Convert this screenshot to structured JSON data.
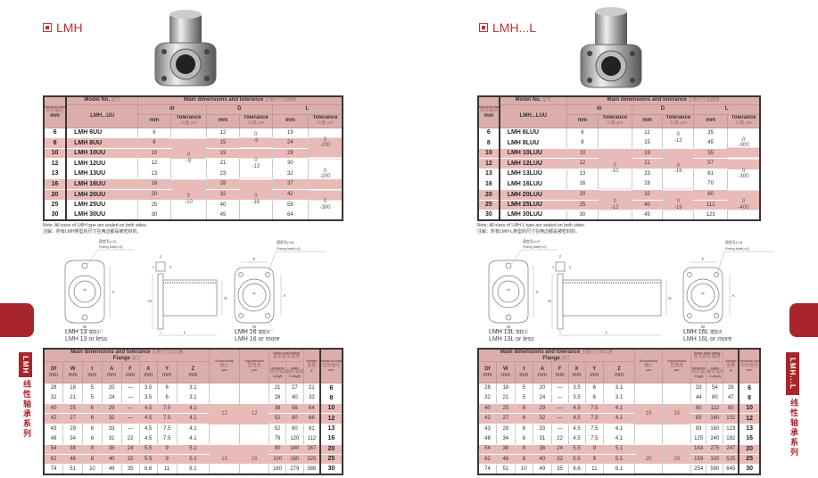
{
  "headers": {
    "nominal_shaft": "Nominal shaft diameter",
    "nominal_shaft_zh": "实际轴径",
    "mm": "mm",
    "model_no": "Model No.",
    "model_no_zh": "型号",
    "main_dims": "Main dimensions and tolerance",
    "main_dims_zh_upper": "主要尺寸及精度",
    "main_dims_zh_lower": "主要尺寸及公差",
    "dr": "dr",
    "D": "D",
    "L": "L",
    "tolerance": "Tolerance",
    "tolerance_zh": "公差",
    "um": "µm",
    "flange": "Flange",
    "flange_zh": "法兰",
    "lower_cols": [
      "Df",
      "W",
      "t",
      "A",
      "F",
      "X",
      "Y",
      "Z"
    ],
    "eccentricity": "Eccentricity",
    "eccentricity_zh": "偏心",
    "squareness": "Squareness",
    "squareness_zh": "直角度",
    "load_rating": "Basic load rating",
    "load_rating_zh": "基本额定载荷",
    "dynamic": "dynamic",
    "dynamic_zh": "动定载荷",
    "C": "C(kgf)",
    "static": "static",
    "static_zh": "静定载荷",
    "Co": "Co(kgf)",
    "weight": "Weight",
    "weight_zh": "重量",
    "g": "g",
    "dash": "—"
  },
  "colors": {
    "accent": "#c0312f",
    "tab": "#a8262b",
    "row_pink": "#e9bbb8",
    "header_pink": "#dcaeab"
  },
  "pages": [
    {
      "title": "LMH",
      "side_code": "LMH",
      "side_series": "线性轴承系列",
      "upper": {
        "model_header": "LMH...UU",
        "rows": [
          {
            "shaft": "6",
            "model": "LMH 6UU",
            "dr": "6",
            "D": "12",
            "L": "19",
            "pink": false
          },
          {
            "shaft": "8",
            "model": "LMH 8UU",
            "dr": "8",
            "D": "15",
            "L": "24",
            "pink": true
          },
          {
            "shaft": "10",
            "model": "LMH 10UU",
            "dr": "10",
            "D": "19",
            "L": "29",
            "pink": true
          },
          {
            "shaft": "12",
            "model": "LMH 12UU",
            "dr": "12",
            "D": "21",
            "L": "30",
            "pink": false
          },
          {
            "shaft": "13",
            "model": "LMH 13UU",
            "dr": "13",
            "D": "23",
            "L": "32",
            "pink": false
          },
          {
            "shaft": "16",
            "model": "LMH 16UU",
            "dr": "16",
            "D": "28",
            "L": "37",
            "pink": true
          },
          {
            "shaft": "20",
            "model": "LMH 20UU",
            "dr": "20",
            "D": "32",
            "L": "42",
            "pink": true
          },
          {
            "shaft": "25",
            "model": "LMH 25UU",
            "dr": "25",
            "D": "40",
            "L": "59",
            "pink": false
          },
          {
            "shaft": "30",
            "model": "LMH 30UU",
            "dr": "30",
            "D": "45",
            "L": "64",
            "pink": false
          }
        ],
        "dr_tol": [
          {
            "span": 1,
            "values": []
          },
          {
            "span": 4,
            "values": [
              "0",
              "-9"
            ]
          },
          {
            "span": 4,
            "values": [
              "0",
              "-10"
            ]
          }
        ],
        "D_tol": [
          {
            "span": 2,
            "values": [
              "0",
              "-9"
            ]
          },
          {
            "span": 3,
            "values": [
              "0",
              "-13"
            ]
          },
          {
            "span": 4,
            "values": [
              "0",
              "-16"
            ]
          }
        ],
        "L_tol": [
          {
            "span": 3,
            "values": [
              "0",
              "-200"
            ]
          },
          {
            "span": 3,
            "values": [
              "0",
              "-200"
            ]
          },
          {
            "span": 3,
            "values": [
              "0",
              "-300"
            ]
          }
        ]
      },
      "note": {
        "en": "Note: All sizes of LMH type are sealed on both sides.",
        "zh": "注解：所有LMH类型的尺寸在两边都是被密封的。"
      },
      "diagrams": {
        "hole2_zh": "固定孔(×2)",
        "hole2": "Fixing hole(×2)",
        "hole4_zh": "固定孔(×4)",
        "hole4": "Fixing hole(×4)",
        "cap_a": "LMH 13",
        "cap_a_zh": "或较小",
        "cap_a2": "LMH 13 or less",
        "cap_b": "LMH 16",
        "cap_b_zh": "或较大",
        "cap_b2": "LMH 16 or more",
        "labels": {
          "dr": "dr",
          "Df": "Df",
          "D": "D",
          "A": "A",
          "W": "W",
          "L": "L",
          "t": "t",
          "X": "X",
          "Y": "Y",
          "Z": "Z",
          "F": "F"
        }
      },
      "lower": {
        "rows": [
          {
            "dims": [
              "28",
              "18",
              "5",
              "20",
              "—",
              "3.5",
              "6",
              "3.1"
            ],
            "C": "21",
            "Co": "27",
            "weight": "21",
            "shaft": "6",
            "pink": false
          },
          {
            "dims": [
              "32",
              "21",
              "5",
              "24",
              "—",
              "3.5",
              "6",
              "3.1"
            ],
            "C": "28",
            "Co": "40",
            "weight": "33",
            "shaft": "8",
            "pink": false
          },
          {
            "dims": [
              "40",
              "25",
              "6",
              "29",
              "—",
              "4.5",
              "7.5",
              "4.1"
            ],
            "C": "38",
            "Co": "56",
            "weight": "64",
            "shaft": "10",
            "pink": true
          },
          {
            "dims": [
              "42",
              "27",
              "6",
              "32",
              "—",
              "4.5",
              "7.5",
              "4.1"
            ],
            "C": "52",
            "Co": "80",
            "weight": "68",
            "shaft": "12",
            "pink": true
          },
          {
            "dims": [
              "43",
              "29",
              "6",
              "33",
              "—",
              "4.5",
              "7.5",
              "4.1"
            ],
            "C": "52",
            "Co": "80",
            "weight": "81",
            "shaft": "13",
            "pink": false
          },
          {
            "dims": [
              "48",
              "34",
              "6",
              "31",
              "22",
              "4.5",
              "7.5",
              "4.1"
            ],
            "C": "79",
            "Co": "120",
            "weight": "112",
            "shaft": "16",
            "pink": false
          },
          {
            "dims": [
              "54",
              "38",
              "8",
              "36",
              "24",
              "5.5",
              "9",
              "5.1"
            ],
            "C": "90",
            "Co": "140",
            "weight": "167",
            "shaft": "20",
            "pink": true
          },
          {
            "dims": [
              "62",
              "46",
              "8",
              "40",
              "32",
              "5.5",
              "9",
              "5.1"
            ],
            "C": "100",
            "Co": "160",
            "weight": "325",
            "shaft": "25",
            "pink": true
          },
          {
            "dims": [
              "74",
              "51",
              "10",
              "49",
              "35",
              "6.6",
              "11",
              "6.1"
            ],
            "C": "160",
            "Co": "279",
            "weight": "388",
            "shaft": "30",
            "pink": false
          }
        ],
        "eccentricity": [
          {
            "span": 6,
            "values": [
              "12"
            ]
          },
          {
            "span": 3,
            "values": [
              "15"
            ]
          }
        ],
        "squareness": [
          {
            "span": 6,
            "values": [
              "12"
            ]
          },
          {
            "span": 3,
            "values": [
              "15"
            ]
          }
        ]
      }
    },
    {
      "title": "LMH...L",
      "side_code": "LMH...L",
      "side_series": "线性轴承系列",
      "upper": {
        "model_header": "LMH...LUU",
        "rows": [
          {
            "shaft": "6",
            "model": "LMH 6LUU",
            "dr": "6",
            "D": "12",
            "L": "35",
            "pink": false
          },
          {
            "shaft": "8",
            "model": "LMH 8LUU",
            "dr": "8",
            "D": "15",
            "L": "45",
            "pink": false
          },
          {
            "shaft": "10",
            "model": "LMH 10LUU",
            "dr": "10",
            "D": "19",
            "L": "55",
            "pink": true
          },
          {
            "shaft": "12",
            "model": "LMH 12LUU",
            "dr": "12",
            "D": "21",
            "L": "57",
            "pink": true
          },
          {
            "shaft": "13",
            "model": "LMH 13LUU",
            "dr": "13",
            "D": "23",
            "L": "61",
            "pink": false
          },
          {
            "shaft": "16",
            "model": "LMH 16LUU",
            "dr": "16",
            "D": "28",
            "L": "70",
            "pink": false
          },
          {
            "shaft": "20",
            "model": "LMH 20LUU",
            "dr": "20",
            "D": "32",
            "L": "80",
            "pink": true
          },
          {
            "shaft": "25",
            "model": "LMH 25LUU",
            "dr": "25",
            "D": "40",
            "L": "112",
            "pink": true
          },
          {
            "shaft": "30",
            "model": "LMH 30LUU",
            "dr": "30",
            "D": "45",
            "L": "123",
            "pink": false
          }
        ],
        "dr_tol": [
          {
            "span": 2,
            "values": []
          },
          {
            "span": 4,
            "values": [
              "0",
              "-10"
            ]
          },
          {
            "span": 3,
            "values": [
              "0",
              "-12"
            ]
          }
        ],
        "D_tol": [
          {
            "span": 2,
            "values": [
              "0",
              "-13"
            ]
          },
          {
            "span": 4,
            "values": [
              "0",
              "-16"
            ]
          },
          {
            "span": 3,
            "values": [
              "0",
              "-19"
            ]
          }
        ],
        "L_tol": [
          {
            "span": 3,
            "values": [
              "0",
              "-300"
            ]
          },
          {
            "span": 3,
            "values": [
              "0",
              "-300"
            ]
          },
          {
            "span": 3,
            "values": [
              "0",
              "-400"
            ]
          }
        ]
      },
      "note": {
        "en": "Note: All sizes of LMH-L type are sealed on both sides.",
        "zh": "注解：所有LMH-L类型的尺寸在两边都是被密封的。"
      },
      "diagrams": {
        "hole2_zh": "固定孔(×2)",
        "hole2": "Fixing hole(×2)",
        "hole4_zh": "固定孔(×4)",
        "hole4": "Fixing hole(×4)",
        "cap_a": "LMH 13L",
        "cap_a_zh": "或较小",
        "cap_a2": "LMH 13L or less",
        "cap_b": "LMH 16L",
        "cap_b_zh": "或较大",
        "cap_b2": "LMH 16L or more",
        "labels": {
          "dr": "dr",
          "Df": "Df",
          "D": "D",
          "A": "A",
          "W": "W",
          "L": "L",
          "t": "t",
          "X": "X",
          "Y": "Y",
          "Z": "Z",
          "F": "F"
        }
      },
      "lower": {
        "rows": [
          {
            "dims": [
              "28",
              "18",
              "5",
              "20",
              "—",
              "3.5",
              "6",
              "3.1"
            ],
            "C": "33",
            "Co": "54",
            "weight": "28",
            "shaft": "6",
            "pink": false
          },
          {
            "dims": [
              "32",
              "21",
              "5",
              "24",
              "—",
              "3.5",
              "6",
              "3.1"
            ],
            "C": "44",
            "Co": "80",
            "weight": "47",
            "shaft": "8",
            "pink": false
          },
          {
            "dims": [
              "40",
              "25",
              "6",
              "29",
              "—",
              "4.5",
              "7.5",
              "4.1"
            ],
            "C": "60",
            "Co": "112",
            "weight": "90",
            "shaft": "10",
            "pink": true
          },
          {
            "dims": [
              "42",
              "27",
              "6",
              "32",
              "—",
              "4.5",
              "7.5",
              "4.1"
            ],
            "C": "83",
            "Co": "160",
            "weight": "102",
            "shaft": "12",
            "pink": true
          },
          {
            "dims": [
              "43",
              "29",
              "6",
              "33",
              "—",
              "4.5",
              "7.5",
              "4.1"
            ],
            "C": "83",
            "Co": "160",
            "weight": "123",
            "shaft": "13",
            "pink": false
          },
          {
            "dims": [
              "48",
              "34",
              "6",
              "31",
              "22",
              "4.5",
              "7.5",
              "4.1"
            ],
            "C": "125",
            "Co": "240",
            "weight": "182",
            "shaft": "16",
            "pink": false
          },
          {
            "dims": [
              "54",
              "38",
              "8",
              "36",
              "24",
              "5.5",
              "9",
              "5.1"
            ],
            "C": "143",
            "Co": "275",
            "weight": "247",
            "shaft": "20",
            "pink": true
          },
          {
            "dims": [
              "62",
              "46",
              "8",
              "40",
              "32",
              "5.5",
              "9",
              "5.1"
            ],
            "C": "159",
            "Co": "320",
            "weight": "525",
            "shaft": "25",
            "pink": true
          },
          {
            "dims": [
              "74",
              "51",
              "10",
              "49",
              "35",
              "6.6",
              "11",
              "6.1"
            ],
            "C": "254",
            "Co": "590",
            "weight": "645",
            "shaft": "30",
            "pink": false
          }
        ],
        "eccentricity": [
          {
            "span": 6,
            "values": [
              "15"
            ]
          },
          {
            "span": 3,
            "values": [
              "20"
            ]
          }
        ],
        "squareness": [
          {
            "span": 6,
            "values": [
              "15"
            ]
          },
          {
            "span": 3,
            "values": [
              "20"
            ]
          }
        ]
      }
    }
  ]
}
